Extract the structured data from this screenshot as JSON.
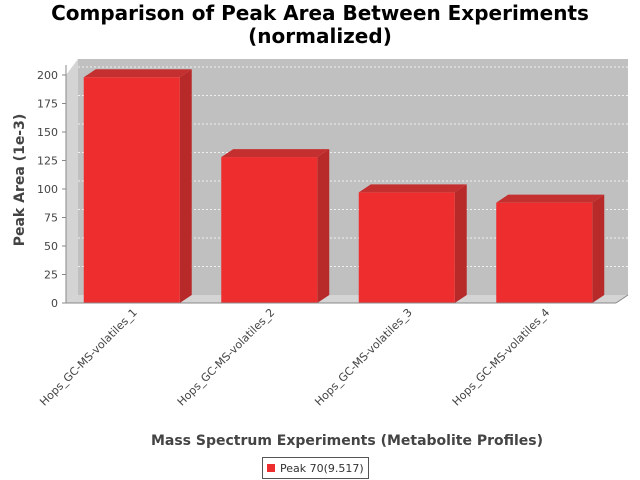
{
  "chart_data": {
    "type": "bar",
    "title_lines": [
      "Comparison of Peak Area Between Experiments",
      "(normalized)"
    ],
    "xlabel": "Mass Spectrum Experiments (Metabolite Profiles)",
    "ylabel": "Peak Area (1e-3)",
    "categories": [
      "Hops_GC-MS-volatiles_1",
      "Hops_GC-MS-volatiles_2",
      "Hops_GC-MS-volatiles_3",
      "Hops_GC-MS-volatiles_4"
    ],
    "series": [
      {
        "name": "Peak 70(9.517)",
        "color": "#ee2e2e",
        "values": [
          198,
          128,
          97,
          88
        ]
      }
    ],
    "ylim": [
      0,
      200
    ],
    "yticks": [
      0,
      25,
      50,
      75,
      100,
      125,
      150,
      175,
      200
    ],
    "grid": true,
    "legend_position": "bottom",
    "plot_background": "#c0c0c0",
    "style": "3d"
  }
}
